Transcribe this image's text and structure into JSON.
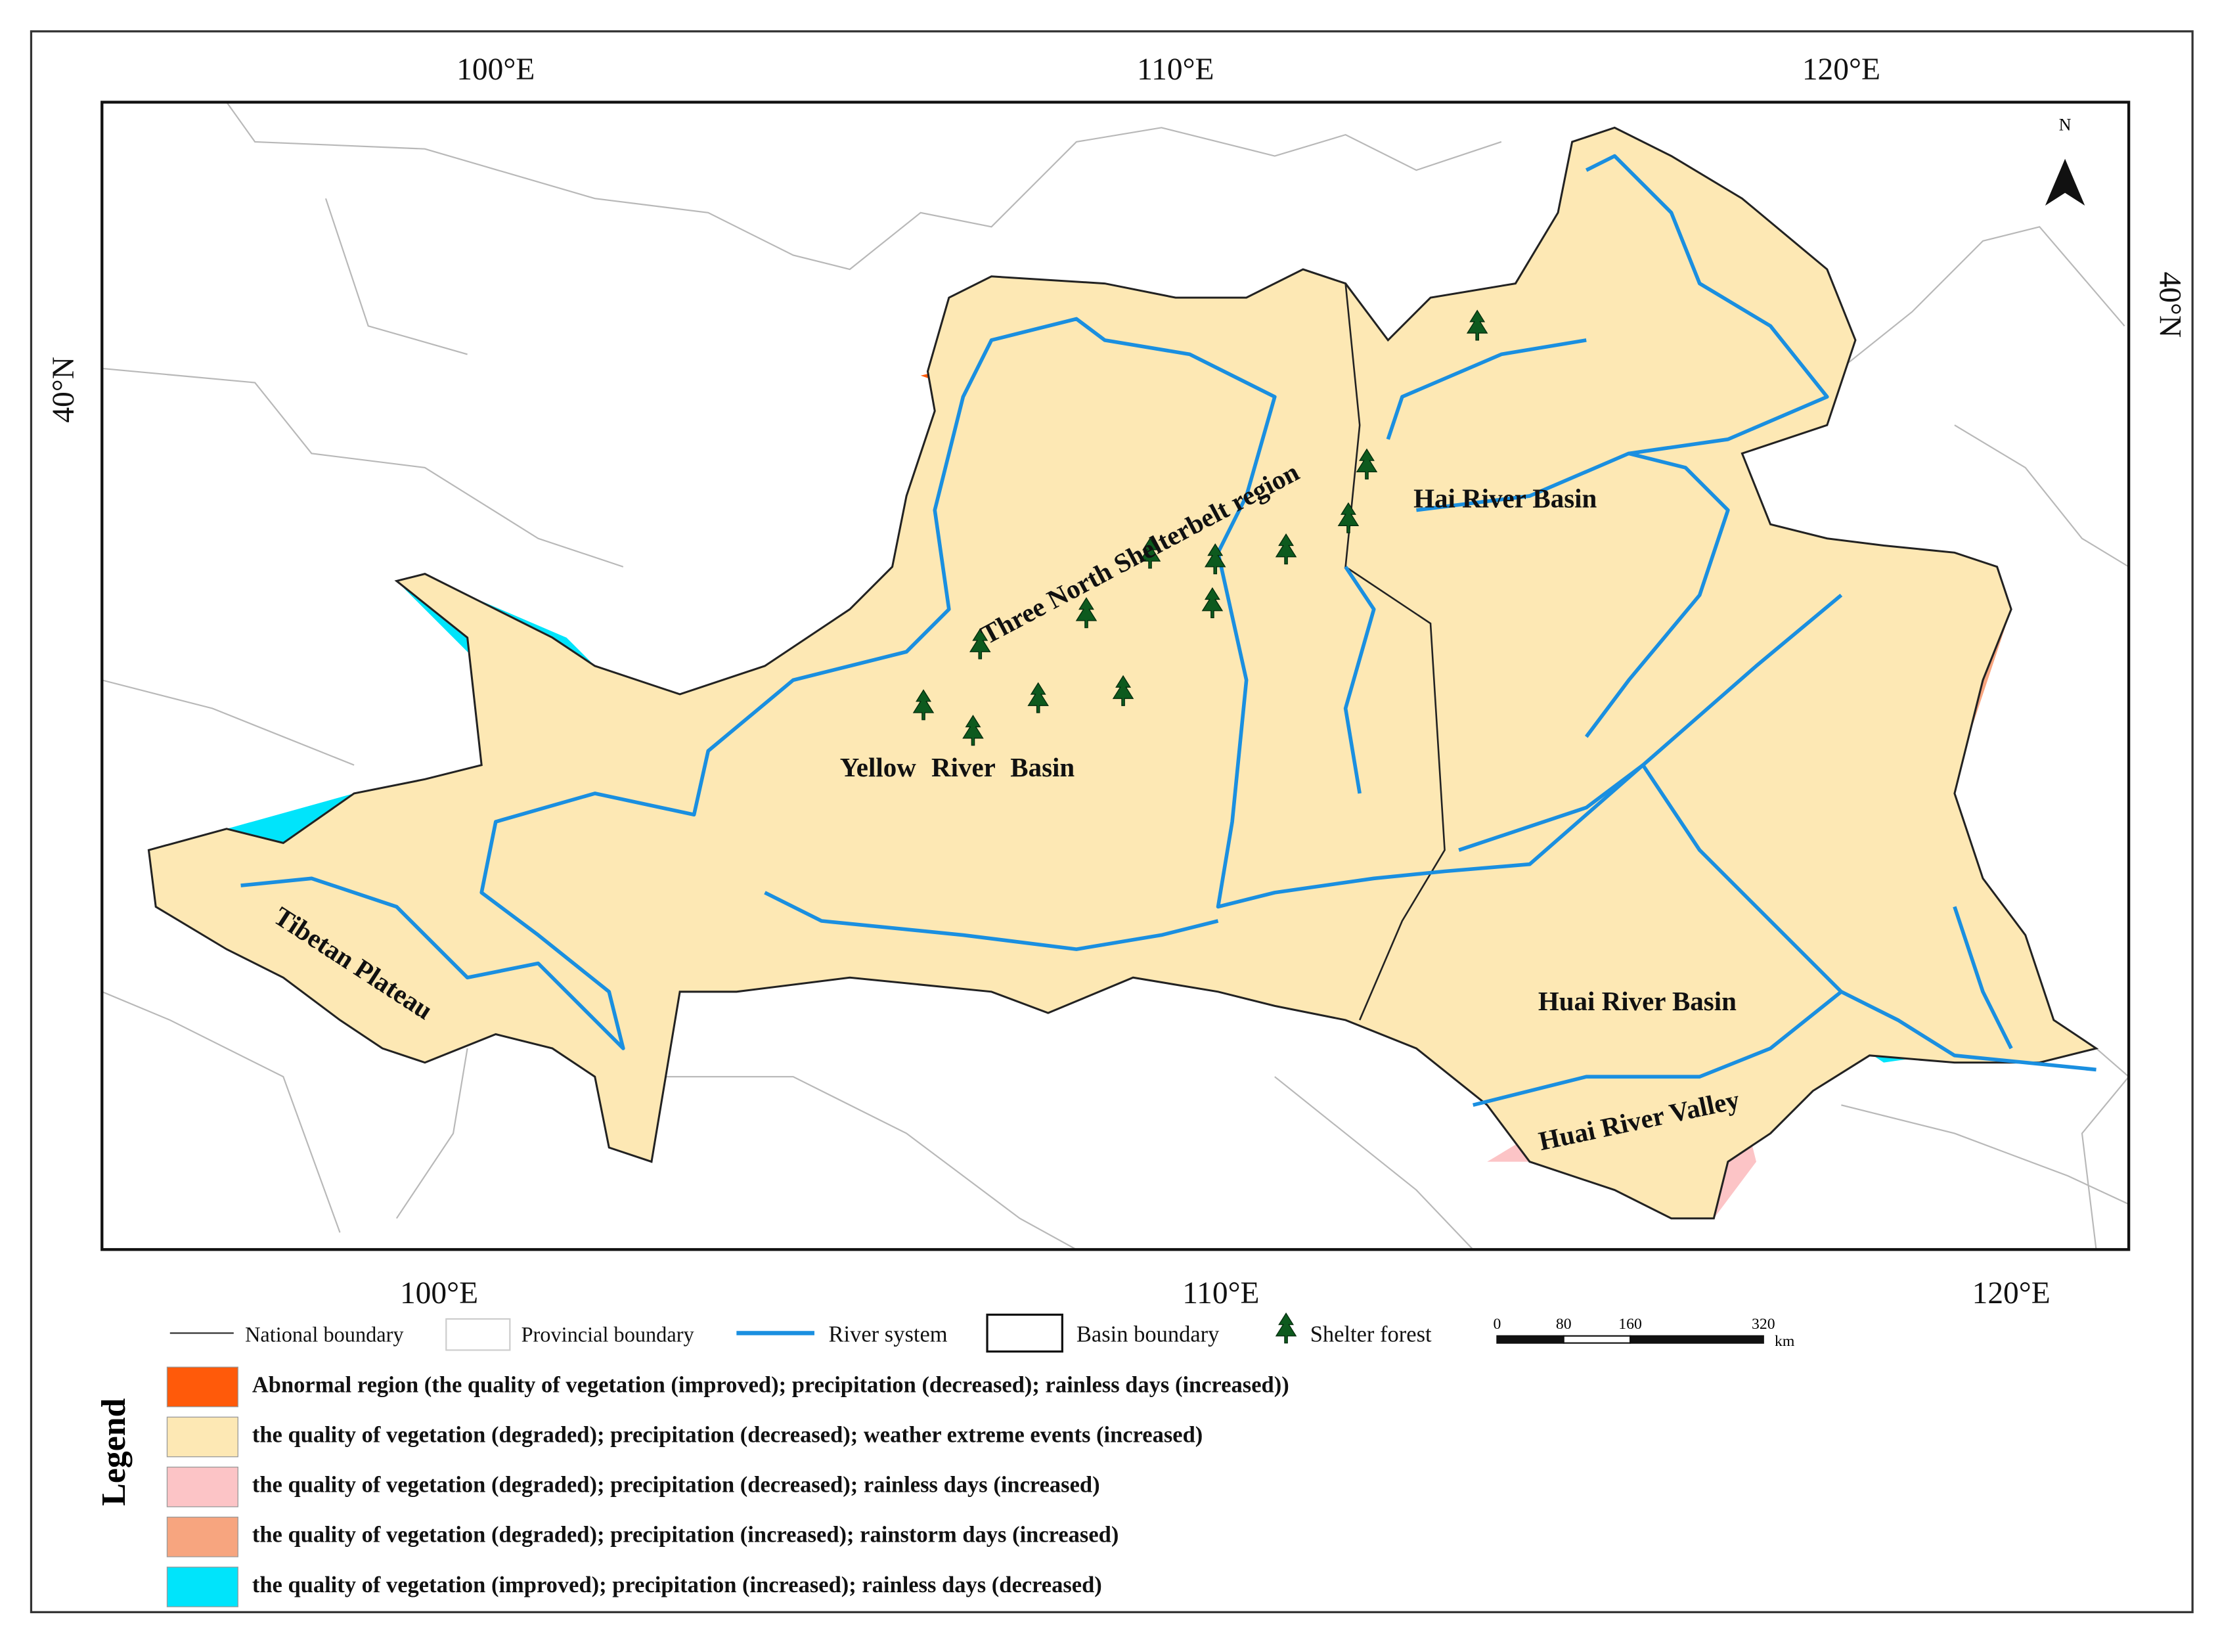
{
  "graticule": {
    "top": [
      "100°E",
      "110°E",
      "120°E"
    ],
    "bottom": [
      "100°E",
      "110°E",
      "120°E"
    ],
    "left": "40°N",
    "right": "40°N"
  },
  "north_arrow": "N",
  "regions": [
    "Three North Shelterbelt region",
    "Hai River Basin",
    "Yellow River Basin",
    "Tibetan Plateau",
    "Huai River Basin",
    "Huai River Valley"
  ],
  "key": [
    "National boundary",
    "Provincial boundary",
    "River system",
    "Basin boundary",
    "Shelter forest"
  ],
  "scale_bar": {
    "ticks": [
      0,
      80,
      160,
      320
    ],
    "unit": "km"
  },
  "legend": {
    "title": "Legend",
    "items": [
      {
        "label": "Abnormal region (the quality of vegetation (improved); precipitation (decreased); rainless days (increased))",
        "color": "#ff5a0a"
      },
      {
        "label": "the quality of vegetation (degraded); precipitation (decreased); weather extreme events (increased)",
        "color": "#fde8b4"
      },
      {
        "label": "the quality of vegetation (degraded); precipitation (decreased); rainless days (increased)",
        "color": "#fcc4c6"
      },
      {
        "label": "the quality of vegetation (degraded); precipitation (increased); rainstorm days (increased)",
        "color": "#f7a57f"
      },
      {
        "label": "the quality of vegetation (improved); precipitation (increased); rainless days (decreased)",
        "color": "#00e4fb"
      }
    ]
  }
}
